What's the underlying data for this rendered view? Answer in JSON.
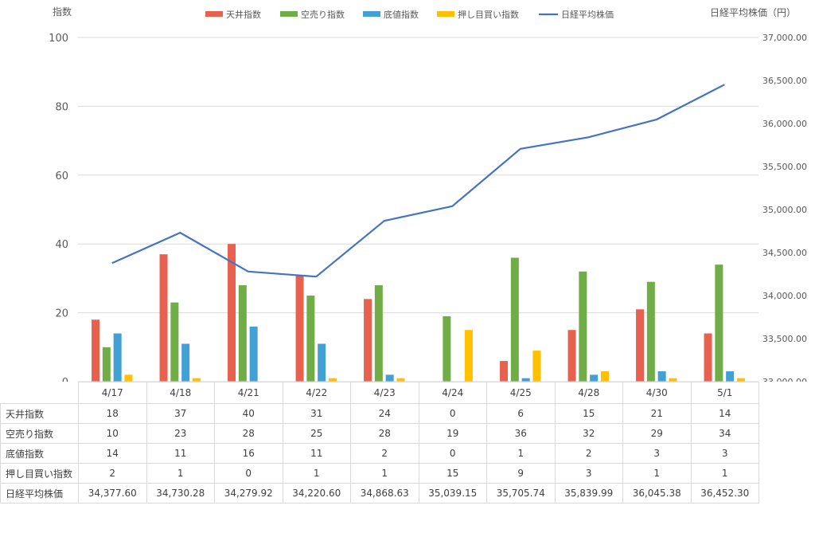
{
  "chart_data": {
    "type": "bar",
    "combo": "bar + line (secondary axis)",
    "categories": [
      "4/17",
      "4/18",
      "4/21",
      "4/22",
      "4/23",
      "4/24",
      "4/25",
      "4/28",
      "4/30",
      "5/1"
    ],
    "series": [
      {
        "name": "天井指数",
        "type": "bar",
        "axis": "left",
        "color": "#e8614f",
        "values": [
          18,
          37,
          40,
          31,
          24,
          0,
          6,
          15,
          21,
          14
        ]
      },
      {
        "name": "空売り指数",
        "type": "bar",
        "axis": "left",
        "color": "#70ad47",
        "values": [
          10,
          23,
          28,
          25,
          28,
          19,
          36,
          32,
          29,
          34
        ]
      },
      {
        "name": "底値指数",
        "type": "bar",
        "axis": "left",
        "color": "#41a0d4",
        "values": [
          14,
          11,
          16,
          11,
          2,
          0,
          1,
          2,
          3,
          3
        ]
      },
      {
        "name": "押し目買い指数",
        "type": "bar",
        "axis": "left",
        "color": "#ffc000",
        "values": [
          2,
          1,
          0,
          1,
          1,
          15,
          9,
          3,
          1,
          1
        ]
      },
      {
        "name": "日経平均株価",
        "type": "line",
        "axis": "right",
        "color": "#4472c4",
        "values": [
          34377.6,
          34730.28,
          34279.92,
          34220.6,
          34868.63,
          35039.15,
          35705.74,
          35839.99,
          36045.38,
          36452.3
        ]
      }
    ],
    "y_left": {
      "label": "指数",
      "min": 0,
      "max": 100,
      "ticks": [
        0,
        20,
        40,
        60,
        80,
        100
      ]
    },
    "y_right": {
      "label": "日経平均株価（円）",
      "min": 33000,
      "max": 37000,
      "ticks": [
        33000,
        33500,
        34000,
        34500,
        35000,
        35500,
        36000,
        36500,
        37000
      ],
      "tick_labels": [
        "33,000.00",
        "33,500.00",
        "34,000.00",
        "34,500.00",
        "35,000.00",
        "35,500.00",
        "36,000.00",
        "36,500.00",
        "37,000.00"
      ]
    },
    "legend_position": "top",
    "grid": true,
    "table": {
      "rows": [
        {
          "name": "天井指数",
          "cells": [
            "18",
            "37",
            "40",
            "31",
            "24",
            "0",
            "6",
            "15",
            "21",
            "14"
          ]
        },
        {
          "name": "空売り指数",
          "cells": [
            "10",
            "23",
            "28",
            "25",
            "28",
            "19",
            "36",
            "32",
            "29",
            "34"
          ]
        },
        {
          "name": "底値指数",
          "cells": [
            "14",
            "11",
            "16",
            "11",
            "2",
            "0",
            "1",
            "2",
            "3",
            "3"
          ]
        },
        {
          "name": "押し目買い指数",
          "cells": [
            "2",
            "1",
            "0",
            "1",
            "1",
            "15",
            "9",
            "3",
            "1",
            "1"
          ]
        },
        {
          "name": "日経平均株価",
          "cells": [
            "34,377.60",
            "34,730.28",
            "34,279.92",
            "34,220.60",
            "34,868.63",
            "35,039.15",
            "35,705.74",
            "35,839.99",
            "36,045.38",
            "36,452.30"
          ]
        }
      ]
    }
  }
}
